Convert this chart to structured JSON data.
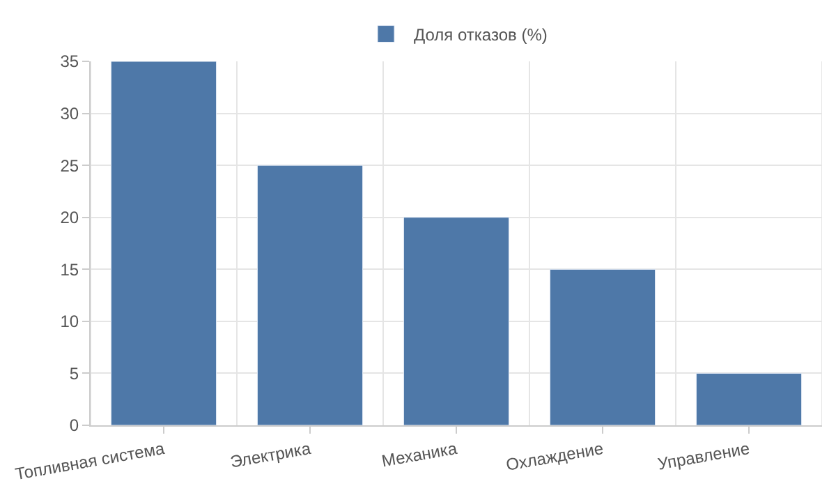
{
  "chart_data": {
    "type": "bar",
    "categories": [
      "Топливная система",
      "Электрика",
      "Механика",
      "Охлаждение",
      "Управление"
    ],
    "series": [
      {
        "name": "Доля отказов (%)",
        "color": "#4e78a8",
        "values": [
          35,
          25,
          20,
          15,
          5
        ]
      }
    ],
    "ylim": [
      0,
      35
    ],
    "yticks": [
      0,
      5,
      10,
      15,
      20,
      25,
      30,
      35
    ],
    "grid": true,
    "legend": "top"
  }
}
